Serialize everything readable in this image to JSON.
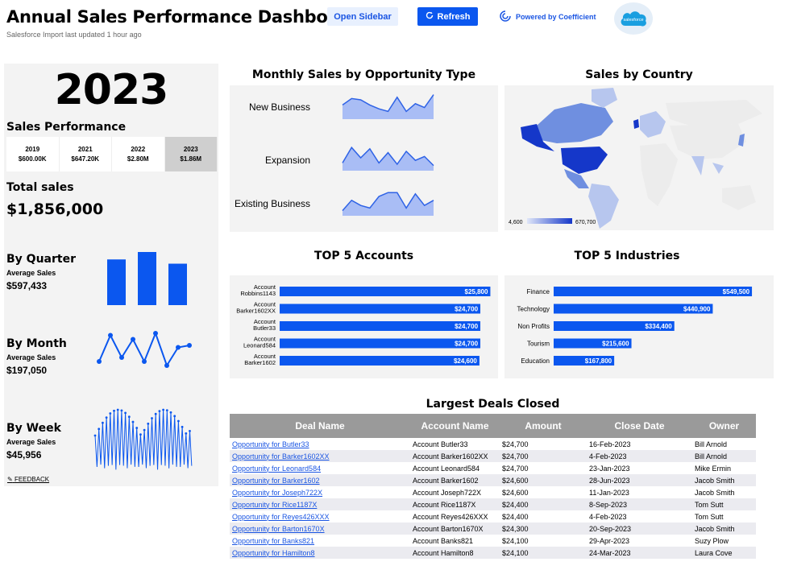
{
  "header": {
    "title": "Annual Sales Performance Dashboard",
    "subtitle": "Salesforce Import last updated 1 hour ago",
    "open_sidebar_label": "Open Sidebar",
    "refresh_label": "Refresh",
    "powered_label": "Powered by Coefficient",
    "sf_logo_text": "salesforce"
  },
  "left": {
    "year": "2023",
    "sales_performance_label": "Sales Performance",
    "tabs": [
      {
        "year": "2019",
        "value": "$600.00K",
        "active": false
      },
      {
        "year": "2021",
        "value": "$647.20K",
        "active": false
      },
      {
        "year": "2022",
        "value": "$2.80M",
        "active": false
      },
      {
        "year": "2023",
        "value": "$1.86M",
        "active": true
      }
    ],
    "total_label": "Total sales",
    "total_value": "$1,856,000",
    "quarter": {
      "title": "By Quarter",
      "sub": "Average Sales",
      "value": "$597,433",
      "bars": [
        0.86,
        1.0,
        0.78
      ]
    },
    "month": {
      "title": "By Month",
      "sub": "Average Sales",
      "value": "$197,050",
      "points": [
        0.2,
        0.85,
        0.3,
        0.75,
        0.2,
        0.9,
        0.1,
        0.55,
        0.6
      ]
    },
    "week": {
      "title": "By Week",
      "sub": "Average Sales",
      "value": "$45,956"
    },
    "feedback_label": "FEEDBACK"
  },
  "monthly": {
    "title": "Monthly Sales by Opportunity Type",
    "rows": [
      {
        "label": "New Business",
        "points": [
          0.55,
          0.8,
          0.75,
          0.55,
          0.4,
          0.3,
          0.85,
          0.3,
          0.6,
          0.45,
          0.95
        ]
      },
      {
        "label": "Expansion",
        "points": [
          0.3,
          0.9,
          0.5,
          0.85,
          0.3,
          0.7,
          0.25,
          0.75,
          0.4,
          0.55,
          0.2
        ]
      },
      {
        "label": "Existing Business",
        "points": [
          0.2,
          0.6,
          0.4,
          0.3,
          0.75,
          0.9,
          0.9,
          0.3,
          0.85,
          0.4,
          0.6
        ]
      }
    ]
  },
  "country": {
    "title": "Sales by Country",
    "legend_min": "4,600",
    "legend_max": "670,700"
  },
  "top_accounts": {
    "title": "TOP 5 Accounts",
    "items": [
      {
        "label1": "Account",
        "label2": "Robbins1143",
        "value": 25800,
        "text": "$25,800"
      },
      {
        "label1": "Account",
        "label2": "Barker1602XX",
        "value": 24700,
        "text": "$24,700"
      },
      {
        "label1": "Account",
        "label2": "Butler33",
        "value": 24700,
        "text": "$24,700"
      },
      {
        "label1": "Account",
        "label2": "Leonard584",
        "value": 24700,
        "text": "$24,700"
      },
      {
        "label1": "Account",
        "label2": "Barker1602",
        "value": 24600,
        "text": "$24,600"
      }
    ]
  },
  "top_industries": {
    "title": "TOP 5 Industries",
    "items": [
      {
        "label": "Finance",
        "value": 549500,
        "text": "$549,500"
      },
      {
        "label": "Technology",
        "value": 440900,
        "text": "$440,900"
      },
      {
        "label": "Non Profits",
        "value": 334400,
        "text": "$334,400"
      },
      {
        "label": "Tourism",
        "value": 215600,
        "text": "$215,600"
      },
      {
        "label": "Education",
        "value": 167800,
        "text": "$167,800"
      }
    ]
  },
  "deals": {
    "title": "Largest Deals Closed",
    "columns": [
      "Deal Name",
      "Account Name",
      "Amount",
      "Close Date",
      "Owner"
    ],
    "rows": [
      [
        "Opportunity for Butler33",
        "Account  Butler33",
        "$24,700",
        "16-Feb-2023",
        "Bill Arnold"
      ],
      [
        "Opportunity for Barker1602XX",
        "Account  Barker1602XX",
        "$24,700",
        "4-Feb-2023",
        "Bill Arnold"
      ],
      [
        "Opportunity for Leonard584",
        "Account  Leonard584",
        "$24,700",
        "23-Jan-2023",
        "Mike Ermin"
      ],
      [
        "Opportunity for Barker1602",
        "Account  Barker1602",
        "$24,600",
        "28-Jun-2023",
        "Jacob Smith"
      ],
      [
        "Opportunity for Joseph722X",
        "Account  Joseph722X",
        "$24,600",
        "11-Jan-2023",
        "Jacob Smith"
      ],
      [
        "Opportunity for Rice1187X",
        "Account  Rice1187X",
        "$24,400",
        "8-Sep-2023",
        "Tom Sutt"
      ],
      [
        "Opportunity for Reyes426XXX",
        "Account  Reyes426XXX",
        "$24,400",
        "4-Feb-2023",
        "Tom Sutt"
      ],
      [
        "Opportunity for Barton1670X",
        "Account  Barton1670X",
        "$24,300",
        "20-Sep-2023",
        "Jacob Smith"
      ],
      [
        "Opportunity for Banks821",
        "Account  Banks821",
        "$24,100",
        "29-Apr-2023",
        "Suzy Plow"
      ],
      [
        "Opportunity for Hamilton8",
        "Account  Hamilton8",
        "$24,100",
        "24-Mar-2023",
        "Laura Cove"
      ]
    ]
  },
  "colors": {
    "accent": "#0b57ef",
    "area": "#a9bdf5",
    "line": "#2f63e6",
    "map_dark": "#1537c9",
    "map_mid": "#6f8fe0",
    "map_light": "#b7c6ee"
  }
}
